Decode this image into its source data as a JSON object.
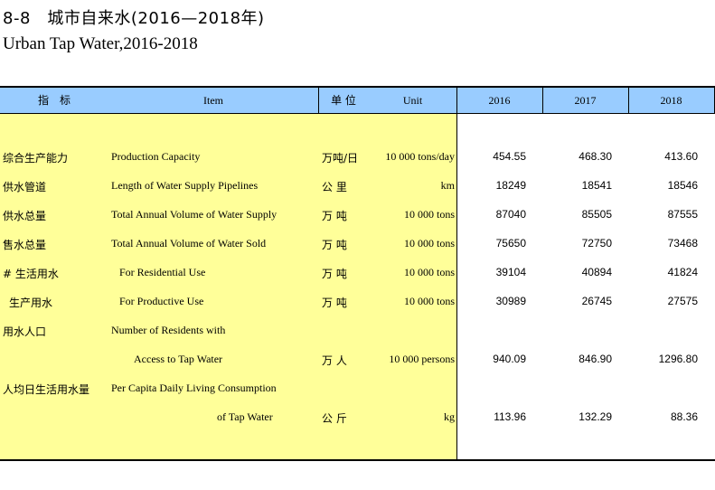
{
  "title_cn": "8-8　城市自来水(2016—2018年)",
  "title_en": "Urban Tap Water,2016-2018",
  "header": {
    "indicator": "指　标",
    "item": "Item",
    "unit_cn": "单 位",
    "unit_en": "Unit",
    "y2016": "2016",
    "y2017": "2017",
    "y2018": "2018"
  },
  "rows": [
    {
      "cn": "综合生产能力",
      "en": "Production Capacity",
      "unit_cn": "万吨/日",
      "unit_en": "10 000 tons/day",
      "v2016": "454.55",
      "v2017": "468.30",
      "v2018": "413.60"
    },
    {
      "cn": "供水管道",
      "en": "Length of Water Supply Pipelines",
      "unit_cn": "公 里",
      "unit_en": "km",
      "v2016": "18249",
      "v2017": "18541",
      "v2018": "18546"
    },
    {
      "cn": "供水总量",
      "en": "Total Annual Volume of Water Supply",
      "unit_cn": "万 吨",
      "unit_en": "10 000 tons",
      "v2016": "87040",
      "v2017": "85505",
      "v2018": "87555"
    },
    {
      "cn": "售水总量",
      "en": "Total Annual Volume of Water Sold",
      "unit_cn": "万 吨",
      "unit_en": "10 000 tons",
      "v2016": "75650",
      "v2017": "72750",
      "v2018": "73468"
    },
    {
      "cn": "# 生活用水",
      "en": "For Residential Use",
      "unit_cn": "万 吨",
      "unit_en": "10 000 tons",
      "v2016": "39104",
      "v2017": "40894",
      "v2018": "41824"
    },
    {
      "cn": "生产用水",
      "en": "For Productive Use",
      "unit_cn": "万 吨",
      "unit_en": "10 000 tons",
      "v2016": "30989",
      "v2017": "26745",
      "v2018": "27575"
    },
    {
      "cn": "用水人口",
      "en": "Number of Residents with",
      "en2": "Access to Tap Water",
      "unit_cn": "万 人",
      "unit_en": "10 000 persons",
      "v2016": "940.09",
      "v2017": "846.90",
      "v2018": "1296.80"
    },
    {
      "cn": "人均日生活用水量",
      "en": "Per Capita Daily Living Consumption",
      "en2": "of Tap Water",
      "unit_cn": "公 斤",
      "unit_en": "kg",
      "v2016": "113.96",
      "v2017": "132.29",
      "v2018": "88.36"
    }
  ]
}
